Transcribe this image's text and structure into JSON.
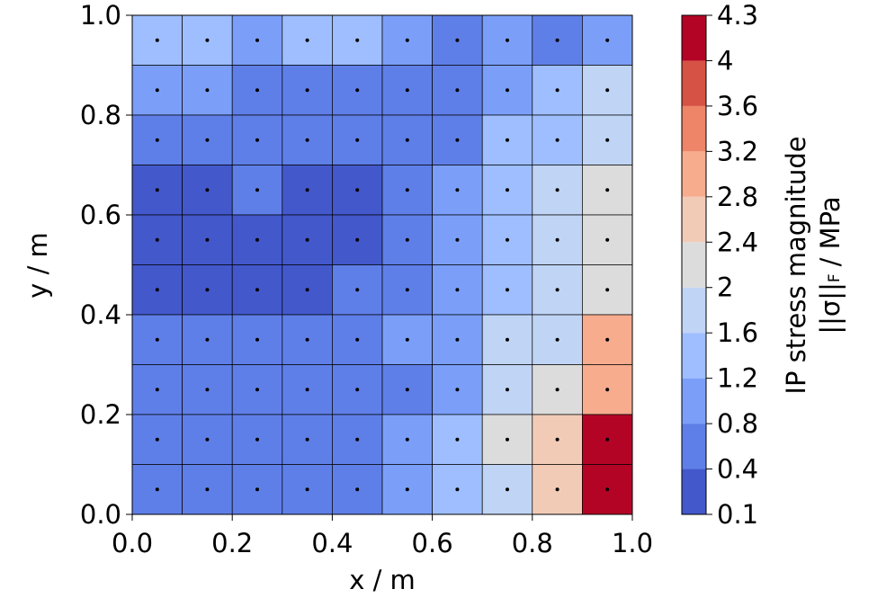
{
  "chart_data": {
    "type": "heatmap",
    "x_label": "x / m",
    "y_label": "y / m",
    "colorbar_label": {
      "line1": "IP stress magnitude",
      "norm": "||σ||",
      "subscript": "F",
      "unit": "/ MPa"
    },
    "x": [
      0.05,
      0.15,
      0.25,
      0.35,
      0.45,
      0.55,
      0.65,
      0.75,
      0.85,
      0.95
    ],
    "y": [
      0.95,
      0.85,
      0.75,
      0.65,
      0.55,
      0.45,
      0.35,
      0.25,
      0.15,
      0.05
    ],
    "z": [
      [
        1.3,
        1.3,
        1.0,
        1.3,
        1.3,
        1.0,
        0.7,
        1.0,
        0.7,
        1.0
      ],
      [
        1.0,
        1.0,
        0.7,
        0.7,
        0.7,
        0.7,
        0.7,
        1.0,
        1.4,
        1.8
      ],
      [
        0.7,
        0.7,
        0.7,
        0.5,
        0.7,
        0.7,
        0.7,
        1.4,
        1.4,
        1.8
      ],
      [
        0.3,
        0.3,
        0.7,
        0.3,
        0.3,
        0.7,
        1.0,
        1.4,
        1.8,
        2.2
      ],
      [
        0.3,
        0.3,
        0.3,
        0.3,
        0.3,
        0.7,
        1.0,
        1.4,
        1.8,
        2.2
      ],
      [
        0.3,
        0.3,
        0.3,
        0.3,
        0.7,
        0.7,
        1.0,
        1.4,
        1.8,
        2.2
      ],
      [
        0.7,
        0.7,
        0.5,
        0.7,
        0.7,
        1.0,
        1.0,
        1.8,
        1.8,
        3.0
      ],
      [
        0.7,
        0.7,
        0.7,
        0.7,
        0.7,
        0.7,
        1.0,
        1.8,
        2.2,
        3.0
      ],
      [
        0.7,
        0.7,
        0.7,
        0.7,
        0.7,
        1.0,
        1.4,
        2.2,
        2.6,
        4.1
      ],
      [
        0.7,
        0.7,
        0.7,
        0.7,
        0.7,
        1.0,
        1.4,
        1.8,
        2.6,
        4.1
      ]
    ],
    "xlim": [
      0,
      1
    ],
    "ylim": [
      0,
      1
    ],
    "xticks": [
      {
        "value": 0,
        "label": "0.0"
      },
      0.2,
      0.4,
      0.6,
      0.8,
      {
        "value": 1,
        "label": "1.0"
      }
    ],
    "yticks": [
      {
        "value": 0,
        "label": "0.0"
      },
      0.2,
      0.4,
      0.6,
      0.8,
      {
        "value": 1,
        "label": "1.0"
      }
    ],
    "levels": [
      0.1,
      0.4,
      0.8,
      1.2,
      1.6,
      2,
      2.4,
      2.8,
      3.2,
      3.6,
      4,
      4.3
    ],
    "colors": [
      "#4358cb",
      "#5f7fe8",
      "#7b9ff9",
      "#9ebeff",
      "#c0d4f5",
      "#dddcdc",
      "#f2cbb7",
      "#f7ac8e",
      "#ee8468",
      "#d65244",
      "#b40426"
    ]
  }
}
